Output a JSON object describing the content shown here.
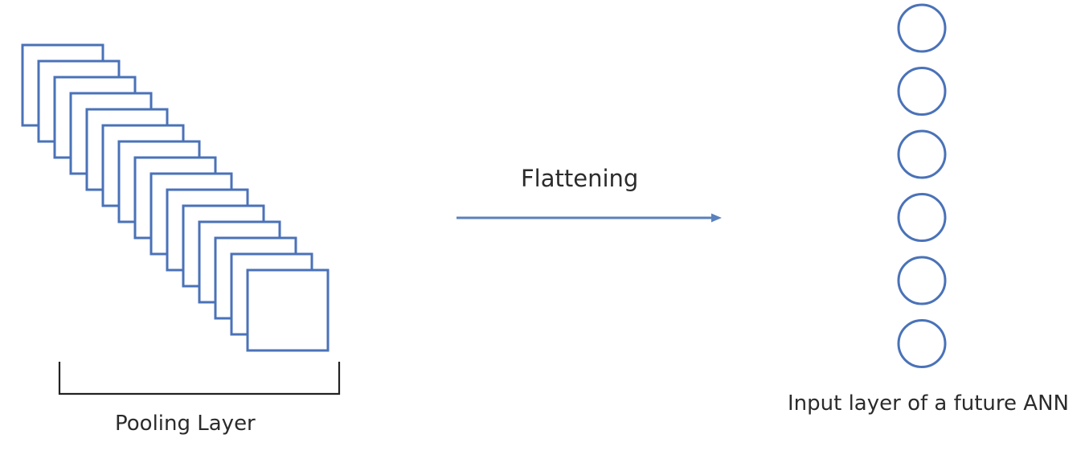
{
  "labels": {
    "pooling_layer": "Pooling Layer",
    "flattening": "Flattening",
    "input_layer": "Input layer of a future ANN"
  },
  "colors": {
    "stroke_blue": "#4a72b8",
    "bracket": "#222222",
    "arrow": "#5a80bd",
    "text": "#2b2b2b"
  },
  "pooling_maps_count": 15,
  "input_nodes_count": 6
}
